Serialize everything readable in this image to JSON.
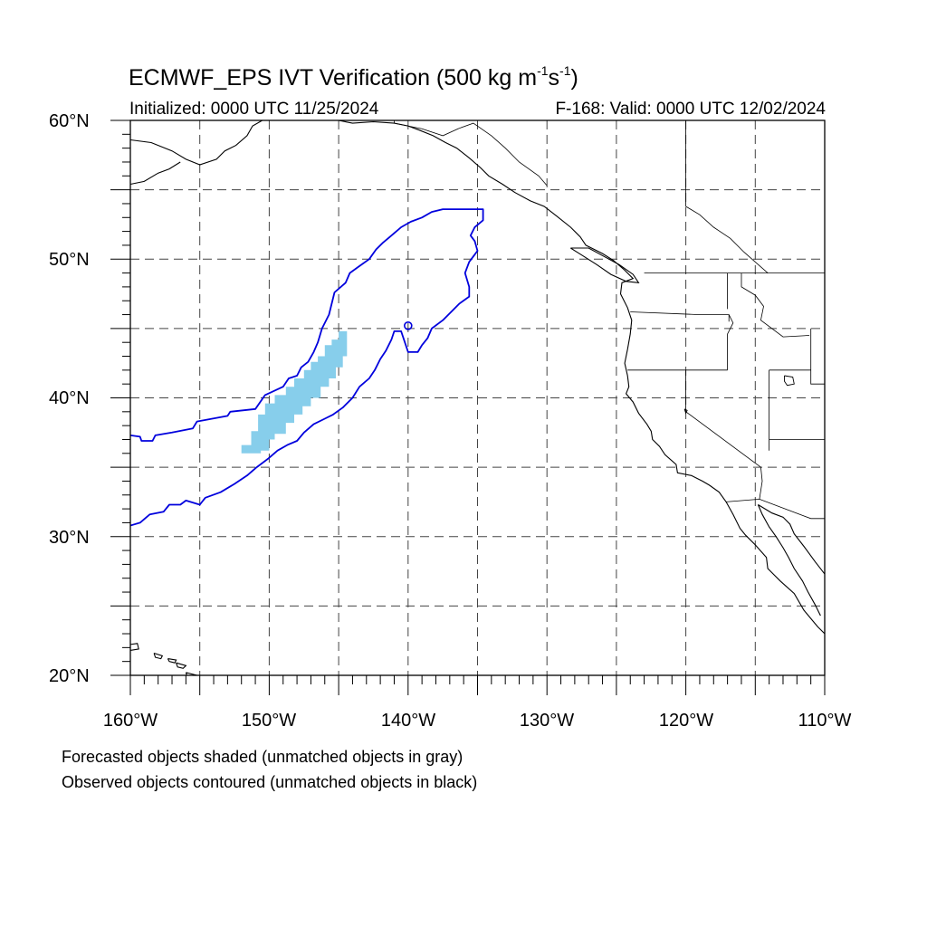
{
  "title": {
    "main_prefix": "ECMWF_EPS IVT Verification (500 kg m",
    "sup1": "-1",
    "middle": "s",
    "sup2": "-1",
    "suffix": ")"
  },
  "initialized": "Initialized: 0000 UTC 11/25/2024",
  "valid": "F-168: Valid: 0000 UTC 12/02/2024",
  "axes": {
    "lat_labels": [
      "60°N",
      "50°N",
      "40°N",
      "30°N",
      "20°N"
    ],
    "lon_labels": [
      "160°W",
      "150°W",
      "140°W",
      "130°W",
      "120°W",
      "110°W"
    ],
    "lat_range": [
      20,
      60
    ],
    "lon_range": [
      -160,
      -110
    ]
  },
  "notes": {
    "forecast": "Forecasted objects shaded (unmatched objects in gray)",
    "observed": "Observed objects contoured (unmatched objects in black)"
  },
  "colors": {
    "forecast_fill": "#87ceeb",
    "observed_contour": "#0000dd",
    "coastline": "#000000",
    "grid": "#444444"
  },
  "forecast_object": [
    [
      -152.0,
      36.0
    ],
    [
      -152.0,
      36.6
    ],
    [
      -151.3,
      36.6
    ],
    [
      -151.3,
      37.6
    ],
    [
      -150.8,
      37.6
    ],
    [
      -150.8,
      38.8
    ],
    [
      -150.3,
      38.8
    ],
    [
      -150.3,
      39.6
    ],
    [
      -149.6,
      39.6
    ],
    [
      -149.6,
      40.2
    ],
    [
      -148.8,
      40.2
    ],
    [
      -148.8,
      40.8
    ],
    [
      -148.2,
      40.8
    ],
    [
      -148.2,
      41.4
    ],
    [
      -147.5,
      41.4
    ],
    [
      -147.5,
      42.0
    ],
    [
      -147.0,
      42.0
    ],
    [
      -147.0,
      42.6
    ],
    [
      -146.5,
      42.6
    ],
    [
      -146.5,
      43.0
    ],
    [
      -146.0,
      43.0
    ],
    [
      -146.0,
      43.8
    ],
    [
      -145.5,
      43.8
    ],
    [
      -145.5,
      44.2
    ],
    [
      -145.0,
      44.2
    ],
    [
      -145.0,
      44.8
    ],
    [
      -144.4,
      44.8
    ],
    [
      -144.4,
      43.0
    ],
    [
      -144.7,
      43.0
    ],
    [
      -144.7,
      42.2
    ],
    [
      -145.2,
      42.2
    ],
    [
      -145.2,
      41.4
    ],
    [
      -145.7,
      41.4
    ],
    [
      -145.7,
      40.8
    ],
    [
      -146.3,
      40.8
    ],
    [
      -146.3,
      40.0
    ],
    [
      -147.0,
      40.0
    ],
    [
      -147.0,
      39.4
    ],
    [
      -147.6,
      39.4
    ],
    [
      -147.6,
      38.8
    ],
    [
      -148.2,
      38.8
    ],
    [
      -148.2,
      38.2
    ],
    [
      -148.8,
      38.2
    ],
    [
      -148.8,
      37.4
    ],
    [
      -149.6,
      37.4
    ],
    [
      -149.6,
      37.0
    ],
    [
      -150.0,
      37.0
    ],
    [
      -150.0,
      36.2
    ],
    [
      -150.6,
      36.2
    ],
    [
      -150.6,
      36.0
    ]
  ],
  "observed_object": [
    [
      -160.0,
      37.3
    ],
    [
      -159.3,
      37.2
    ],
    [
      -159.2,
      36.9
    ],
    [
      -158.4,
      36.9
    ],
    [
      -158.2,
      37.3
    ],
    [
      -157.0,
      37.5
    ],
    [
      -155.5,
      37.8
    ],
    [
      -155.2,
      38.3
    ],
    [
      -153.0,
      38.7
    ],
    [
      -152.8,
      39.0
    ],
    [
      -151.0,
      39.2
    ],
    [
      -150.3,
      40.2
    ],
    [
      -149.0,
      40.8
    ],
    [
      -148.6,
      41.4
    ],
    [
      -148.0,
      41.6
    ],
    [
      -147.7,
      42.2
    ],
    [
      -147.2,
      42.6
    ],
    [
      -146.8,
      43.3
    ],
    [
      -146.5,
      44.0
    ],
    [
      -146.2,
      45.0
    ],
    [
      -145.7,
      46.0
    ],
    [
      -145.3,
      47.6
    ],
    [
      -144.5,
      48.3
    ],
    [
      -144.2,
      49.0
    ],
    [
      -143.5,
      49.5
    ],
    [
      -142.8,
      50.0
    ],
    [
      -142.3,
      50.7
    ],
    [
      -141.8,
      51.2
    ],
    [
      -141.2,
      51.7
    ],
    [
      -140.5,
      52.3
    ],
    [
      -139.8,
      52.7
    ],
    [
      -139.0,
      53.0
    ],
    [
      -138.3,
      53.4
    ],
    [
      -137.5,
      53.6
    ],
    [
      -135.0,
      53.6
    ],
    [
      -134.6,
      53.6
    ],
    [
      -134.6,
      52.8
    ],
    [
      -135.2,
      52.3
    ],
    [
      -135.5,
      51.7
    ],
    [
      -135.2,
      51.3
    ],
    [
      -135.0,
      50.6
    ],
    [
      -135.6,
      49.8
    ],
    [
      -135.9,
      49.0
    ],
    [
      -135.6,
      48.0
    ],
    [
      -135.6,
      47.3
    ],
    [
      -136.3,
      46.8
    ],
    [
      -136.9,
      46.2
    ],
    [
      -137.5,
      45.6
    ],
    [
      -138.3,
      45.0
    ],
    [
      -138.6,
      44.3
    ],
    [
      -139.0,
      43.8
    ],
    [
      -139.3,
      43.3
    ],
    [
      -140.0,
      43.3
    ],
    [
      -140.3,
      44.2
    ],
    [
      -140.5,
      44.8
    ],
    [
      -141.0,
      44.8
    ],
    [
      -141.2,
      44.2
    ],
    [
      -141.6,
      43.4
    ],
    [
      -142.0,
      42.8
    ],
    [
      -142.4,
      42.0
    ],
    [
      -142.8,
      41.4
    ],
    [
      -143.5,
      40.8
    ],
    [
      -144.0,
      40.0
    ],
    [
      -144.7,
      39.3
    ],
    [
      -145.4,
      38.8
    ],
    [
      -146.0,
      38.5
    ],
    [
      -146.8,
      38.1
    ],
    [
      -147.5,
      37.5
    ],
    [
      -148.0,
      36.9
    ],
    [
      -148.7,
      36.6
    ],
    [
      -149.4,
      36.2
    ],
    [
      -150.1,
      35.6
    ],
    [
      -150.9,
      35.0
    ],
    [
      -151.6,
      34.4
    ],
    [
      -152.5,
      33.8
    ],
    [
      -153.5,
      33.2
    ],
    [
      -154.6,
      32.8
    ],
    [
      -155.0,
      32.3
    ],
    [
      -156.0,
      32.6
    ],
    [
      -156.4,
      32.3
    ],
    [
      -157.2,
      32.3
    ],
    [
      -157.6,
      31.8
    ],
    [
      -158.6,
      31.6
    ],
    [
      -159.3,
      31.0
    ],
    [
      -160.0,
      30.8
    ]
  ],
  "observed_small_ring": [
    -140.0,
    45.2
  ],
  "coastlines": {
    "north_america_west": [
      [
        -145.0,
        60.0
      ],
      [
        -144.0,
        59.8
      ],
      [
        -142.5,
        59.9
      ],
      [
        -141.0,
        59.8
      ],
      [
        -140.0,
        59.6
      ],
      [
        -139.2,
        59.3
      ],
      [
        -138.2,
        58.9
      ],
      [
        -137.3,
        58.4
      ],
      [
        -136.5,
        58.0
      ],
      [
        -135.6,
        57.3
      ],
      [
        -134.8,
        56.6
      ],
      [
        -134.2,
        56.0
      ],
      [
        -133.2,
        55.4
      ],
      [
        -132.3,
        54.8
      ],
      [
        -131.2,
        54.2
      ],
      [
        -130.2,
        53.8
      ],
      [
        -129.3,
        53.1
      ],
      [
        -128.3,
        52.3
      ],
      [
        -127.6,
        51.6
      ],
      [
        -127.2,
        51.0
      ],
      [
        -126.0,
        50.4
      ],
      [
        -125.2,
        49.9
      ],
      [
        -124.4,
        49.2
      ],
      [
        -123.8,
        48.6
      ],
      [
        -124.6,
        48.3
      ],
      [
        -124.7,
        47.5
      ],
      [
        -124.2,
        46.5
      ],
      [
        -123.9,
        45.6
      ],
      [
        -124.0,
        44.6
      ],
      [
        -124.2,
        43.5
      ],
      [
        -124.4,
        42.5
      ],
      [
        -124.2,
        41.6
      ],
      [
        -124.1,
        40.8
      ],
      [
        -124.3,
        40.3
      ],
      [
        -123.8,
        39.7
      ],
      [
        -123.4,
        38.9
      ],
      [
        -122.8,
        38.1
      ],
      [
        -122.5,
        37.6
      ],
      [
        -122.4,
        37.0
      ],
      [
        -121.9,
        36.5
      ],
      [
        -121.5,
        35.9
      ],
      [
        -120.7,
        35.2
      ],
      [
        -120.6,
        34.6
      ],
      [
        -119.6,
        34.4
      ],
      [
        -118.8,
        34.0
      ],
      [
        -118.3,
        33.7
      ],
      [
        -117.6,
        33.2
      ],
      [
        -117.1,
        32.5
      ],
      [
        -116.6,
        31.6
      ],
      [
        -116.1,
        30.6
      ],
      [
        -115.7,
        30.1
      ],
      [
        -115.0,
        29.4
      ],
      [
        -114.2,
        28.5
      ],
      [
        -114.1,
        27.7
      ],
      [
        -113.2,
        26.8
      ],
      [
        -112.2,
        25.9
      ],
      [
        -111.5,
        24.7
      ],
      [
        -110.5,
        23.5
      ],
      [
        -110.0,
        23.0
      ]
    ],
    "baja_east": [
      [
        -114.8,
        32.3
      ],
      [
        -114.5,
        31.6
      ],
      [
        -114.0,
        30.7
      ],
      [
        -113.5,
        30.0
      ],
      [
        -113.0,
        29.2
      ],
      [
        -112.6,
        28.5
      ],
      [
        -112.2,
        27.7
      ],
      [
        -111.6,
        26.8
      ],
      [
        -111.2,
        26.0
      ],
      [
        -110.7,
        25.1
      ],
      [
        -110.3,
        24.3
      ]
    ],
    "mexico_mainland": [
      [
        -114.8,
        32.3
      ],
      [
        -113.8,
        31.7
      ],
      [
        -113.0,
        31.4
      ],
      [
        -112.5,
        30.9
      ],
      [
        -112.2,
        30.2
      ],
      [
        -111.5,
        29.3
      ],
      [
        -110.7,
        28.2
      ],
      [
        -110.0,
        27.3
      ]
    ],
    "vancouver_island": [
      [
        -128.3,
        50.8
      ],
      [
        -127.5,
        50.3
      ],
      [
        -126.4,
        49.6
      ],
      [
        -125.4,
        48.9
      ],
      [
        -124.3,
        48.4
      ],
      [
        -123.4,
        48.3
      ],
      [
        -123.8,
        48.9
      ],
      [
        -124.8,
        49.6
      ],
      [
        -125.9,
        50.2
      ],
      [
        -127.0,
        50.8
      ],
      [
        -128.3,
        50.8
      ]
    ],
    "alaska_west": [
      [
        -160.0,
        58.6
      ],
      [
        -158.5,
        58.4
      ],
      [
        -157.0,
        57.8
      ],
      [
        -156.0,
        57.2
      ],
      [
        -155.0,
        56.8
      ],
      [
        -153.8,
        57.2
      ],
      [
        -153.2,
        57.8
      ],
      [
        -152.4,
        58.2
      ],
      [
        -151.6,
        58.9
      ],
      [
        -151.2,
        59.6
      ],
      [
        -150.5,
        60.0
      ]
    ],
    "alaska_pen": [
      [
        -160.0,
        55.4
      ],
      [
        -159.0,
        55.6
      ],
      [
        -158.0,
        56.2
      ],
      [
        -157.2,
        56.5
      ],
      [
        -156.4,
        57.0
      ]
    ],
    "hawaii": [
      [
        [
          -160.2,
          22.2
        ],
        [
          -159.5,
          22.3
        ],
        [
          -159.4,
          21.9
        ],
        [
          -160.0,
          21.8
        ],
        [
          -160.2,
          22.2
        ]
      ],
      [
        [
          -158.3,
          21.6
        ],
        [
          -157.7,
          21.4
        ],
        [
          -157.8,
          21.2
        ],
        [
          -158.2,
          21.3
        ],
        [
          -158.3,
          21.6
        ]
      ],
      [
        [
          -157.3,
          21.2
        ],
        [
          -156.7,
          21.1
        ],
        [
          -156.8,
          20.9
        ],
        [
          -157.2,
          21.0
        ],
        [
          -157.3,
          21.2
        ]
      ],
      [
        [
          -156.7,
          20.9
        ],
        [
          -156.0,
          20.7
        ],
        [
          -156.2,
          20.5
        ],
        [
          -156.6,
          20.6
        ],
        [
          -156.7,
          20.9
        ]
      ],
      [
        [
          -156.0,
          20.2
        ],
        [
          -155.2,
          20.0
        ],
        [
          -155.3,
          19.8
        ],
        [
          -155.9,
          19.9
        ],
        [
          -156.0,
          20.2
        ]
      ]
    ]
  },
  "borders": {
    "us_canada": [
      [
        -123.0,
        49.0
      ],
      [
        -110.0,
        49.0
      ]
    ],
    "alaska_canada": [
      [
        -141.0,
        60.0
      ],
      [
        -141.0,
        59.8
      ],
      [
        -139.0,
        59.4
      ],
      [
        -137.5,
        58.9
      ],
      [
        -136.4,
        59.4
      ],
      [
        -135.3,
        59.8
      ],
      [
        -134.0,
        58.9
      ],
      [
        -133.0,
        58.0
      ],
      [
        -132.0,
        57.0
      ],
      [
        -130.6,
        56.0
      ],
      [
        -130.0,
        55.3
      ]
    ],
    "bc_alberta": [
      [
        -120.0,
        60.0
      ],
      [
        -120.0,
        53.8
      ],
      [
        -119.0,
        53.2
      ],
      [
        -118.0,
        52.3
      ],
      [
        -116.8,
        51.5
      ],
      [
        -115.8,
        50.5
      ],
      [
        -114.1,
        49.0
      ]
    ],
    "ca_or": [
      [
        -124.2,
        42.0
      ],
      [
        -117.0,
        42.0
      ]
    ],
    "wa_or": [
      [
        -124.0,
        46.2
      ],
      [
        -119.0,
        46.0
      ],
      [
        -116.9,
        46.0
      ],
      [
        -116.9,
        45.5
      ]
    ],
    "or_idaho": [
      [
        -116.9,
        46.0
      ],
      [
        -116.6,
        45.4
      ],
      [
        -117.0,
        44.6
      ],
      [
        -117.0,
        42.0
      ]
    ],
    "wa_idaho": [
      [
        -117.0,
        49.0
      ],
      [
        -117.0,
        46.4
      ]
    ],
    "idaho_montana": [
      [
        -116.0,
        49.0
      ],
      [
        -116.0,
        48.0
      ],
      [
        -115.0,
        47.4
      ],
      [
        -114.4,
        46.6
      ],
      [
        -114.6,
        45.6
      ],
      [
        -113.0,
        44.4
      ],
      [
        -111.1,
        44.5
      ]
    ],
    "nv_ut": [
      [
        -114.0,
        42.0
      ],
      [
        -114.0,
        37.0
      ],
      [
        -114.0,
        36.2
      ]
    ],
    "ca_nv": [
      [
        -120.0,
        42.0
      ],
      [
        -120.0,
        39.0
      ],
      [
        -114.6,
        35.0
      ]
    ],
    "ca_az": [
      [
        -114.6,
        35.0
      ],
      [
        -114.5,
        34.0
      ],
      [
        -114.7,
        32.7
      ]
    ],
    "us_mex": [
      [
        -117.1,
        32.5
      ],
      [
        -114.7,
        32.7
      ],
      [
        -111.0,
        31.3
      ],
      [
        -110.0,
        31.3
      ]
    ],
    "ut_north": [
      [
        -114.0,
        42.0
      ],
      [
        -111.0,
        42.0
      ]
    ],
    "wyoming": [
      [
        -111.0,
        45.0
      ],
      [
        -111.0,
        41.0
      ],
      [
        -110.0,
        41.0
      ]
    ],
    "ut_az": [
      [
        -114.0,
        37.0
      ],
      [
        -110.0,
        37.0
      ]
    ]
  },
  "lakes": {
    "great_salt_lake": [
      [
        -112.9,
        41.6
      ],
      [
        -112.3,
        41.5
      ],
      [
        -112.2,
        41.0
      ],
      [
        -112.7,
        40.9
      ],
      [
        -112.9,
        41.2
      ],
      [
        -112.9,
        41.6
      ]
    ],
    "tahoe": [
      [
        -120.1,
        39.2
      ],
      [
        -119.9,
        39.1
      ],
      [
        -120.0,
        38.9
      ],
      [
        -120.1,
        39.2
      ]
    ]
  }
}
